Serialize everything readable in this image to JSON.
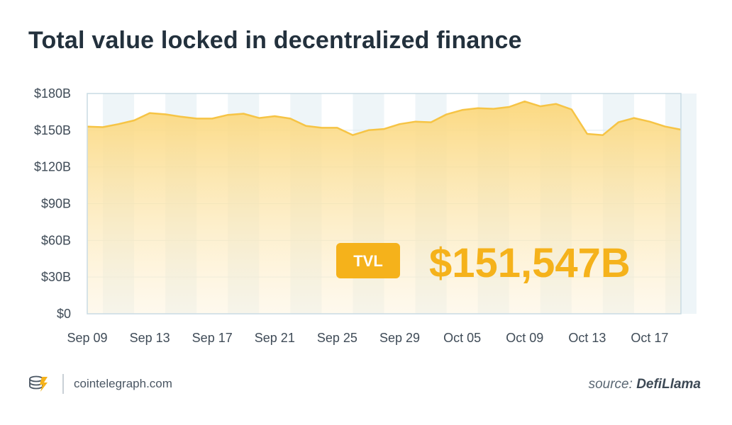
{
  "title": "Total value locked in decentralized finance",
  "footer": {
    "site": "cointelegraph.com",
    "source_label": "source:",
    "source_name": "DefiLlama"
  },
  "colors": {
    "line": "#f6c445",
    "fill_top": "#fbd77a",
    "fill_bottom": "#fdf3dc",
    "band": "#eef5f8",
    "badge": "#f5b21b",
    "value": "#f5b21b",
    "axis_text": "#3f4b57"
  },
  "chart_data": {
    "type": "area",
    "title": "Total value locked in decentralized finance",
    "ylim": [
      0,
      180
    ],
    "y_ticks": [
      0,
      30,
      60,
      90,
      120,
      150,
      180
    ],
    "y_tick_labels": [
      "$0",
      "$30B",
      "$60B",
      "$90B",
      "$120B",
      "$150B",
      "$180B"
    ],
    "x_ticks": [
      "Sep 09",
      "Sep 13",
      "Sep 17",
      "Sep 21",
      "Sep 25",
      "Sep 29",
      "Oct 05",
      "Oct 09",
      "Oct 13",
      "Oct 17"
    ],
    "x_tick_positions": [
      0,
      4,
      8,
      12,
      16,
      20,
      24,
      28,
      32,
      36
    ],
    "grid": true,
    "series": [
      {
        "values": [
          153,
          152.5,
          155,
          158,
          164,
          163,
          161,
          159.5,
          159.5,
          162.5,
          163.5,
          160,
          161.5,
          159.5,
          153.5,
          152,
          152,
          146,
          150,
          151,
          155,
          157,
          156.5,
          163,
          166.5,
          168,
          167.5,
          169,
          173.5,
          169.5,
          171.5,
          167,
          147,
          146,
          156.5,
          160,
          157,
          153,
          150.5
        ]
      }
    ],
    "annotation": {
      "badge": "TVL",
      "value": "$151,547B"
    }
  }
}
